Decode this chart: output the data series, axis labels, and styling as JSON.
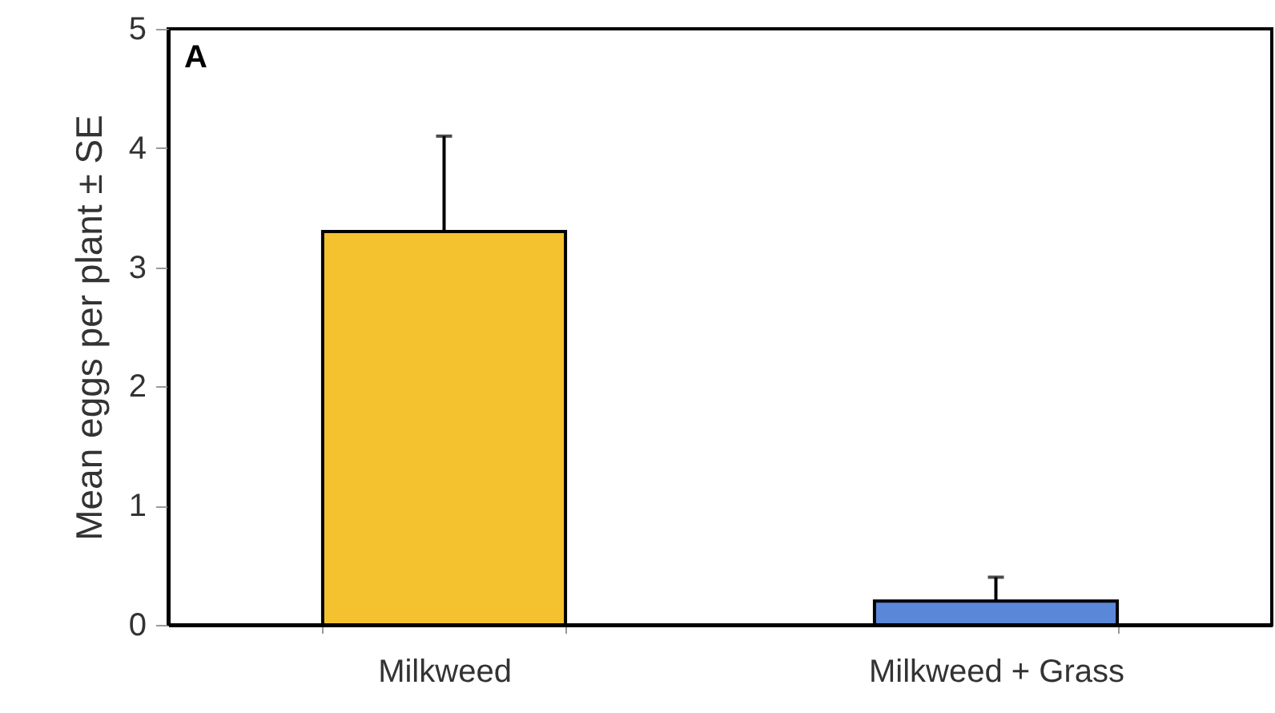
{
  "chart_data": {
    "type": "bar",
    "ylabel": "Mean eggs per plant ± SE",
    "categories": [
      "Milkweed",
      "Milkweed + Grass"
    ],
    "values": [
      3.3,
      0.2
    ],
    "colors": [
      "#f4c22f",
      "#5b87d8"
    ],
    "errors": [
      [
        3.3,
        4.1
      ],
      [
        0.2,
        0.4
      ]
    ],
    "ylim": [
      0,
      5
    ],
    "yticks": [
      0,
      1,
      2,
      3,
      4,
      5
    ],
    "annotations": [
      "A"
    ],
    "grid": false
  }
}
